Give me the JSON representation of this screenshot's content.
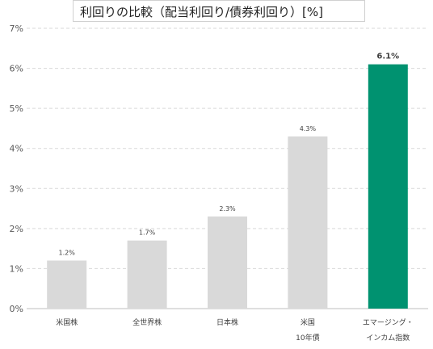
{
  "title": "利回りの比較（配当利回り/債券利回り）[%]",
  "colors": {
    "default_bar": "#d9d9d9",
    "highlight_bar": "#009270",
    "grid": "#d9d9d9",
    "axis_text": "#595959"
  },
  "chart_data": {
    "type": "bar",
    "title": "利回りの比較（配当利回り/債券利回り）[%]",
    "categories": [
      [
        "米国株"
      ],
      [
        "全世界株"
      ],
      [
        "日本株"
      ],
      [
        "米国",
        "10年債"
      ],
      [
        "エマージング・",
        "インカム指数"
      ]
    ],
    "values": [
      1.2,
      1.7,
      2.3,
      4.3,
      6.1
    ],
    "data_labels": [
      "1.2%",
      "1.7%",
      "2.3%",
      "4.3%",
      "6.1%"
    ],
    "highlight_index": 4,
    "ylim": [
      0,
      7
    ],
    "yticks": [
      0,
      1,
      2,
      3,
      4,
      5,
      6,
      7
    ],
    "ytick_labels": [
      "0%",
      "1%",
      "2%",
      "3%",
      "4%",
      "5%",
      "6%",
      "7%"
    ],
    "grid": true,
    "legend": false
  }
}
